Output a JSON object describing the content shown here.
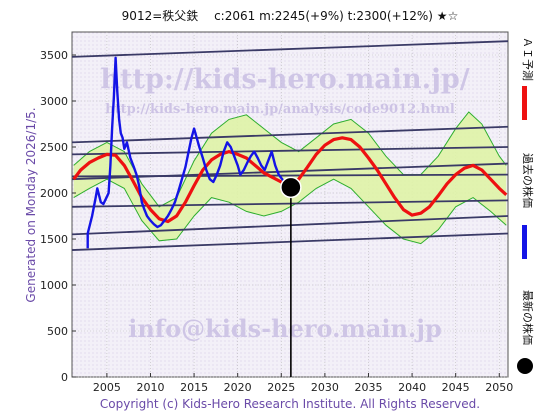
{
  "header": {
    "title": "9012=秩父鉄　 c:2061  m:2245(+9%)  t:2300(+12%)  ★☆"
  },
  "side_label": "Generated on Monday 2026/1/5.",
  "footer": "Copyright (c) Kids-Hero Research Institute. All Rights Reserved.",
  "watermarks": {
    "url": "http://kids-hero.main.jp/",
    "analysis": "http://kids-hero.main.jp/analysis/code9012.html",
    "email": "info@kids-hero.main.jp"
  },
  "legend": {
    "ai": "ＡＩ予測",
    "past": "過去の株価",
    "latest": "最新の株価"
  },
  "colors": {
    "plot_bg": "#f1edf6",
    "past_price": "#1414e6",
    "ai_forecast": "#ee1111",
    "band_fill": "#dff3a6",
    "band_line": "#2fae2f",
    "trend_line": "#3a3a66",
    "latest_marker": "#000000"
  },
  "chart_data": {
    "type": "line",
    "title": "9012=秩父鉄　 c:2061  m:2245(+9%)  t:2300(+12%)  ★☆",
    "xlim": [
      2001,
      2051
    ],
    "ylim": [
      0,
      3750
    ],
    "x_ticks": [
      2005,
      2010,
      2015,
      2020,
      2025,
      2030,
      2035,
      2040,
      2045,
      2050
    ],
    "y_ticks": [
      0,
      500,
      1000,
      1500,
      2000,
      2500,
      3000,
      3500
    ],
    "grid": true,
    "latest_point": {
      "x": 2026.1,
      "y": 2061
    },
    "past_price": [
      [
        2002.8,
        1400
      ],
      [
        2002.8,
        1560
      ],
      [
        2003.3,
        1750
      ],
      [
        2003.7,
        1940
      ],
      [
        2003.9,
        2050
      ],
      [
        2004.3,
        1900
      ],
      [
        2004.6,
        1880
      ],
      [
        2005.0,
        1960
      ],
      [
        2005.2,
        2000
      ],
      [
        2005.4,
        2300
      ],
      [
        2005.6,
        2700
      ],
      [
        2005.8,
        3050
      ],
      [
        2006.0,
        3470
      ],
      [
        2006.2,
        3100
      ],
      [
        2006.4,
        2800
      ],
      [
        2006.6,
        2650
      ],
      [
        2006.8,
        2600
      ],
      [
        2007.0,
        2480
      ],
      [
        2007.3,
        2550
      ],
      [
        2007.7,
        2380
      ],
      [
        2008.1,
        2280
      ],
      [
        2008.4,
        2200
      ],
      [
        2008.7,
        2080
      ],
      [
        2009.0,
        1900
      ],
      [
        2009.3,
        1820
      ],
      [
        2009.6,
        1750
      ],
      [
        2010.0,
        1700
      ],
      [
        2010.4,
        1660
      ],
      [
        2010.8,
        1630
      ],
      [
        2011.2,
        1650
      ],
      [
        2011.6,
        1700
      ],
      [
        2012.0,
        1750
      ],
      [
        2012.4,
        1820
      ],
      [
        2012.8,
        1900
      ],
      [
        2013.2,
        2020
      ],
      [
        2013.6,
        2150
      ],
      [
        2014.0,
        2280
      ],
      [
        2014.4,
        2460
      ],
      [
        2014.7,
        2600
      ],
      [
        2015.0,
        2700
      ],
      [
        2015.3,
        2600
      ],
      [
        2015.6,
        2500
      ],
      [
        2016.0,
        2380
      ],
      [
        2016.4,
        2250
      ],
      [
        2016.8,
        2150
      ],
      [
        2017.2,
        2120
      ],
      [
        2017.6,
        2200
      ],
      [
        2018.0,
        2300
      ],
      [
        2018.4,
        2450
      ],
      [
        2018.8,
        2550
      ],
      [
        2019.2,
        2500
      ],
      [
        2019.6,
        2400
      ],
      [
        2020.0,
        2300
      ],
      [
        2020.3,
        2200
      ],
      [
        2020.7,
        2250
      ],
      [
        2021.1,
        2330
      ],
      [
        2021.5,
        2400
      ],
      [
        2021.9,
        2450
      ],
      [
        2022.3,
        2380
      ],
      [
        2022.7,
        2300
      ],
      [
        2023.1,
        2250
      ],
      [
        2023.5,
        2350
      ],
      [
        2023.9,
        2450
      ],
      [
        2024.3,
        2300
      ],
      [
        2024.7,
        2200
      ],
      [
        2025.1,
        2150
      ],
      [
        2025.5,
        2100
      ],
      [
        2026.0,
        2061
      ]
    ],
    "ai_forecast": [
      [
        2001.2,
        2150
      ],
      [
        2002.0,
        2250
      ],
      [
        2003.0,
        2330
      ],
      [
        2004.0,
        2380
      ],
      [
        2005.0,
        2420
      ],
      [
        2006.0,
        2410
      ],
      [
        2007.0,
        2300
      ],
      [
        2008.0,
        2130
      ],
      [
        2009.0,
        1950
      ],
      [
        2010.0,
        1820
      ],
      [
        2011.0,
        1720
      ],
      [
        2012.0,
        1690
      ],
      [
        2013.0,
        1750
      ],
      [
        2014.0,
        1900
      ],
      [
        2015.0,
        2080
      ],
      [
        2016.0,
        2250
      ],
      [
        2017.0,
        2360
      ],
      [
        2018.0,
        2420
      ],
      [
        2019.0,
        2450
      ],
      [
        2020.0,
        2420
      ],
      [
        2021.0,
        2380
      ],
      [
        2022.0,
        2300
      ],
      [
        2023.0,
        2220
      ],
      [
        2024.0,
        2170
      ],
      [
        2025.0,
        2120
      ],
      [
        2026.0,
        2080
      ],
      [
        2027.0,
        2150
      ],
      [
        2028.0,
        2280
      ],
      [
        2029.0,
        2420
      ],
      [
        2030.0,
        2520
      ],
      [
        2031.0,
        2580
      ],
      [
        2032.0,
        2600
      ],
      [
        2033.0,
        2580
      ],
      [
        2034.0,
        2500
      ],
      [
        2035.0,
        2380
      ],
      [
        2036.0,
        2250
      ],
      [
        2037.0,
        2100
      ],
      [
        2038.0,
        1950
      ],
      [
        2039.0,
        1820
      ],
      [
        2040.0,
        1760
      ],
      [
        2041.0,
        1780
      ],
      [
        2042.0,
        1850
      ],
      [
        2043.0,
        1970
      ],
      [
        2044.0,
        2100
      ],
      [
        2045.0,
        2200
      ],
      [
        2046.0,
        2270
      ],
      [
        2047.0,
        2300
      ],
      [
        2048.0,
        2250
      ],
      [
        2049.0,
        2150
      ],
      [
        2050.0,
        2050
      ],
      [
        2050.8,
        1980
      ]
    ],
    "band_upper": [
      [
        2001.2,
        2300
      ],
      [
        2003.0,
        2450
      ],
      [
        2005.0,
        2550
      ],
      [
        2007.0,
        2450
      ],
      [
        2009.0,
        2100
      ],
      [
        2011.0,
        1850
      ],
      [
        2013.0,
        1950
      ],
      [
        2015.0,
        2350
      ],
      [
        2017.0,
        2650
      ],
      [
        2019.0,
        2800
      ],
      [
        2021.0,
        2850
      ],
      [
        2023.0,
        2700
      ],
      [
        2025.0,
        2550
      ],
      [
        2027.0,
        2450
      ],
      [
        2029.0,
        2600
      ],
      [
        2031.0,
        2750
      ],
      [
        2033.0,
        2800
      ],
      [
        2035.0,
        2650
      ],
      [
        2037.0,
        2400
      ],
      [
        2039.0,
        2200
      ],
      [
        2041.0,
        2200
      ],
      [
        2043.0,
        2400
      ],
      [
        2045.0,
        2700
      ],
      [
        2046.5,
        2880
      ],
      [
        2048.0,
        2750
      ],
      [
        2050.0,
        2400
      ],
      [
        2050.8,
        2300
      ]
    ],
    "band_lower": [
      [
        2001.2,
        1950
      ],
      [
        2003.0,
        2050
      ],
      [
        2005.0,
        2150
      ],
      [
        2007.0,
        2050
      ],
      [
        2009.0,
        1700
      ],
      [
        2011.0,
        1480
      ],
      [
        2013.0,
        1500
      ],
      [
        2015.0,
        1750
      ],
      [
        2017.0,
        1950
      ],
      [
        2019.0,
        1900
      ],
      [
        2021.0,
        1800
      ],
      [
        2023.0,
        1750
      ],
      [
        2025.0,
        1800
      ],
      [
        2027.0,
        1900
      ],
      [
        2029.0,
        2050
      ],
      [
        2031.0,
        2150
      ],
      [
        2033.0,
        2050
      ],
      [
        2035.0,
        1850
      ],
      [
        2037.0,
        1650
      ],
      [
        2039.0,
        1500
      ],
      [
        2041.0,
        1450
      ],
      [
        2043.0,
        1600
      ],
      [
        2045.0,
        1850
      ],
      [
        2047.0,
        1950
      ],
      [
        2049.0,
        1800
      ],
      [
        2050.8,
        1650
      ]
    ],
    "trend_lines": [
      [
        [
          2001,
          3480
        ],
        [
          2051,
          3650
        ]
      ],
      [
        [
          2001,
          2550
        ],
        [
          2051,
          2720
        ]
      ],
      [
        [
          2001,
          2420
        ],
        [
          2051,
          2500
        ]
      ],
      [
        [
          2001,
          2150
        ],
        [
          2051,
          2320
        ]
      ],
      [
        [
          2001,
          2180
        ],
        [
          2051,
          2200
        ]
      ],
      [
        [
          2001,
          1850
        ],
        [
          2051,
          1920
        ]
      ],
      [
        [
          2001,
          1550
        ],
        [
          2051,
          1750
        ]
      ],
      [
        [
          2001,
          1380
        ],
        [
          2051,
          1560
        ]
      ]
    ]
  }
}
